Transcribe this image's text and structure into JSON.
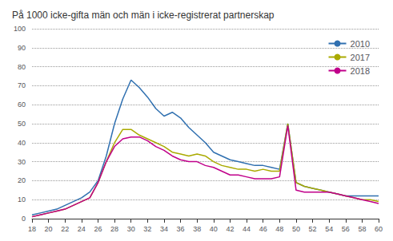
{
  "chart_data": {
    "type": "line",
    "title": "På 1000 icke-gifta män och män i icke-registrerat partnerskap",
    "x": [
      18,
      19,
      20,
      21,
      22,
      23,
      24,
      25,
      26,
      27,
      28,
      29,
      30,
      31,
      32,
      33,
      34,
      35,
      36,
      37,
      38,
      39,
      40,
      41,
      42,
      43,
      44,
      45,
      46,
      47,
      48,
      49,
      50,
      51,
      52,
      53,
      54,
      55,
      56,
      57,
      58,
      59,
      60
    ],
    "series": [
      {
        "name": "2010",
        "color": "#3070B0",
        "values": [
          2,
          3,
          4,
          5,
          7,
          9,
          11,
          14,
          20,
          33,
          50,
          63,
          73,
          69,
          64,
          58,
          54,
          56,
          53,
          48,
          44,
          40,
          35,
          33,
          31,
          30,
          29,
          28,
          28,
          27,
          26,
          50,
          19,
          17,
          16,
          15,
          14,
          13,
          12,
          12,
          12,
          12,
          12
        ]
      },
      {
        "name": "2017",
        "color": "#AAAA00",
        "values": [
          1,
          2,
          3,
          4,
          5,
          7,
          9,
          11,
          19,
          30,
          40,
          47,
          47,
          44,
          42,
          40,
          38,
          35,
          34,
          33,
          34,
          33,
          30,
          28,
          27,
          26,
          26,
          25,
          26,
          25,
          25,
          50,
          19,
          17,
          16,
          15,
          14,
          13,
          12,
          11,
          10,
          10,
          9
        ]
      },
      {
        "name": "2018",
        "color": "#C0008A",
        "values": [
          1,
          2,
          3,
          4,
          5,
          7,
          9,
          11,
          19,
          30,
          38,
          42,
          43,
          43,
          41,
          38,
          36,
          33,
          31,
          30,
          30,
          28,
          27,
          25,
          23,
          23,
          22,
          21,
          21,
          21,
          22,
          49,
          15,
          14,
          14,
          14,
          14,
          13,
          12,
          11,
          10,
          9,
          8
        ]
      }
    ],
    "xlim": [
      18,
      60
    ],
    "ylim": [
      0,
      100
    ],
    "xticks": [
      18,
      20,
      22,
      24,
      26,
      28,
      30,
      32,
      34,
      36,
      38,
      40,
      42,
      44,
      46,
      48,
      50,
      52,
      54,
      56,
      58,
      60
    ],
    "yticks": [
      0,
      10,
      20,
      30,
      40,
      50,
      60,
      70,
      80,
      90,
      100
    ],
    "grid": true,
    "legend": "upper right"
  }
}
